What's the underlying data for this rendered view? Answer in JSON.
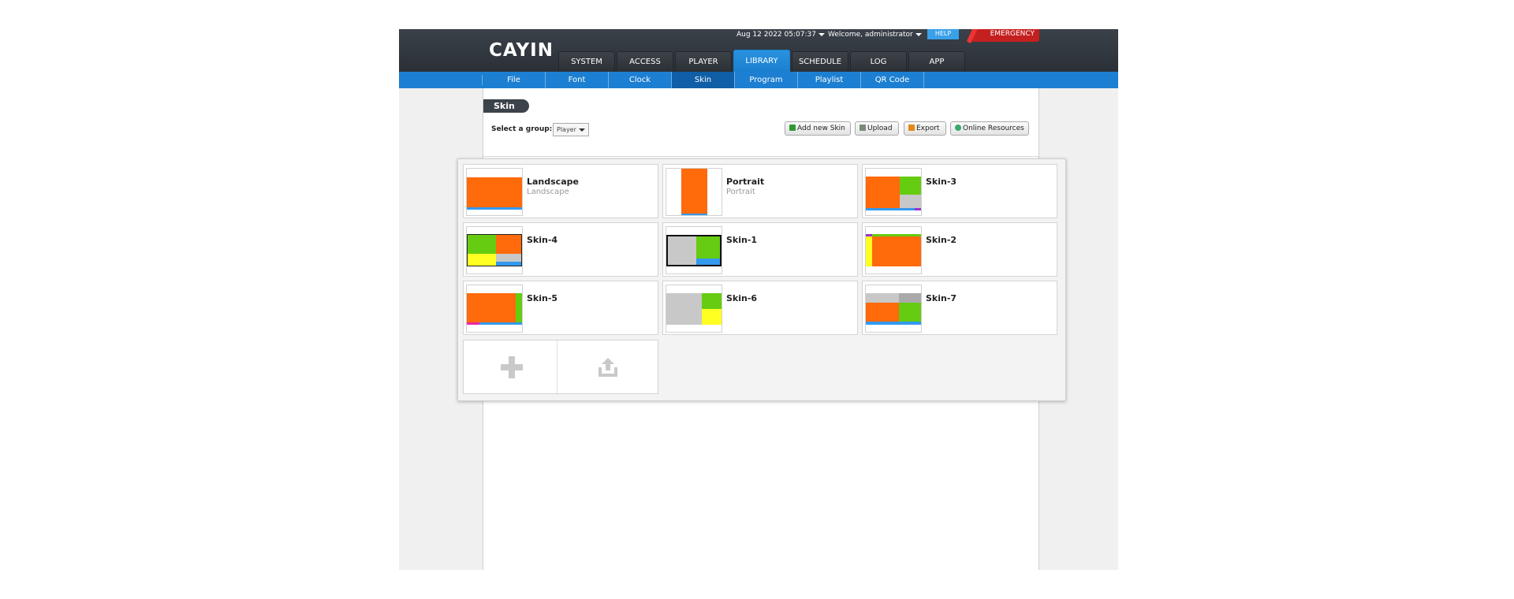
{
  "header": {
    "logo": "CAYIN",
    "datetime": "Aug 12 2022 05:07:37",
    "welcome": "Welcome, administrator",
    "help": "HELP",
    "emergency": "EMERGENCY"
  },
  "main_tabs": [
    {
      "label": "SYSTEM"
    },
    {
      "label": "ACCESS"
    },
    {
      "label": "PLAYER"
    },
    {
      "label": "LIBRARY",
      "active": true
    },
    {
      "label": "SCHEDULE"
    },
    {
      "label": "LOG"
    },
    {
      "label": "APP"
    }
  ],
  "sub_tabs": [
    {
      "label": "File"
    },
    {
      "label": "Font"
    },
    {
      "label": "Clock"
    },
    {
      "label": "Skin",
      "active": true
    },
    {
      "label": "Program"
    },
    {
      "label": "Playlist"
    },
    {
      "label": "QR Code"
    }
  ],
  "page": {
    "title": "Skin",
    "group_label": "Select a group:",
    "group_value": "Player"
  },
  "toolbar": {
    "add_new": "Add new Skin",
    "upload": "Upload",
    "export": "Export",
    "online": "Online Resources"
  },
  "skins": [
    {
      "name": "Landscape",
      "subtitle": "Landscape"
    },
    {
      "name": "Portrait",
      "subtitle": "Portrait"
    },
    {
      "name": "Skin-3",
      "subtitle": ""
    },
    {
      "name": "Skin-4",
      "subtitle": ""
    },
    {
      "name": "Skin-1",
      "subtitle": ""
    },
    {
      "name": "Skin-2",
      "subtitle": ""
    },
    {
      "name": "Skin-5",
      "subtitle": ""
    },
    {
      "name": "Skin-6",
      "subtitle": ""
    },
    {
      "name": "Skin-7",
      "subtitle": ""
    }
  ],
  "colors": {
    "header_dark": "#2f353b",
    "nav_blue": "#1c7fd1",
    "zone_orange": "#ff6a0a",
    "zone_green": "#66cc11",
    "zone_gray": "#c8c8c8",
    "zone_yellow": "#ffff22",
    "zone_blue": "#3399ee",
    "zone_purple": "#9933cc"
  },
  "icons": {
    "add": "plus-icon",
    "upload": "upload-icon"
  }
}
